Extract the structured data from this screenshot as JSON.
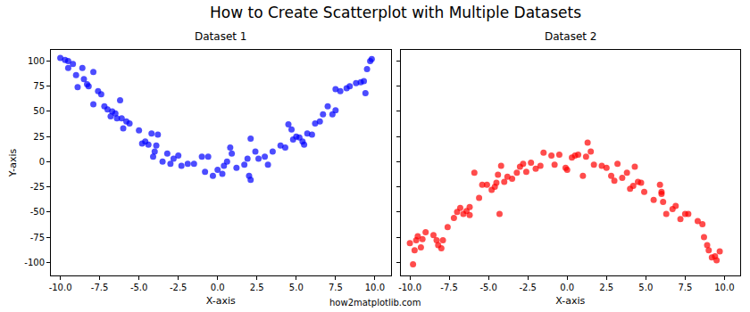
{
  "title": "How to Create Scatterplot with Multiple Datasets",
  "annotation": "how2matplotlib.com",
  "chart_data": [
    {
      "type": "scatter",
      "title": "Dataset 1",
      "x_label": "X-axis",
      "y_label": "Y-axis",
      "color": "blue",
      "marker": "circle",
      "grid": false,
      "xlim": [
        -10.6,
        11.0
      ],
      "ylim": [
        -113,
        111
      ],
      "xticks": [
        {
          "value": -10,
          "label": "-10.0"
        },
        -7.5,
        {
          "value": -5,
          "label": "-5.0"
        },
        -2.5,
        {
          "value": 0,
          "label": "0.0"
        },
        2.5,
        {
          "value": 5,
          "label": "5.0"
        },
        7.5,
        {
          "value": 10,
          "label": "10.0"
        }
      ],
      "yticks": [
        -100,
        -75,
        -50,
        -25,
        0,
        25,
        50,
        75,
        100
      ],
      "x": [
        -10,
        -9.7,
        -9.5,
        -9.5,
        -9.2,
        -9,
        -8.9,
        -8.6,
        -8.5,
        -8.3,
        -8.2,
        -7.9,
        -7.9,
        -7.6,
        -7.4,
        -7.2,
        -7,
        -6.8,
        -6.7,
        -6.5,
        -6.4,
        -6.2,
        -6.1,
        -6,
        -5.8,
        -5.6,
        -5,
        -4.8,
        -4.6,
        -4.4,
        -4.2,
        -4.1,
        -4,
        -3.9,
        -3.8,
        -3.5,
        -3.2,
        -3,
        -2.8,
        -2.5,
        -2.3,
        -1.9,
        -1.5,
        -1,
        -0.8,
        -0.6,
        -0.3,
        0,
        0.3,
        0.4,
        0.6,
        0.8,
        0.9,
        1.2,
        1.7,
        1.9,
        2,
        2.1,
        2.1,
        2.4,
        2.6,
        3,
        3.2,
        3.5,
        4,
        4.3,
        4.5,
        4.7,
        4.8,
        5,
        5.2,
        5.4,
        5.5,
        5.7,
        6,
        6.2,
        6.5,
        6.7,
        7,
        7.3,
        7.5,
        7.5,
        7.8,
        8.2,
        8.4,
        8.8,
        9.1,
        9.3,
        9.4,
        9.5,
        9.7,
        9.8
      ],
      "values": [
        103,
        101,
        100,
        93,
        97,
        86,
        74,
        93,
        82,
        77,
        75,
        89,
        57,
        70,
        67,
        55,
        52,
        45,
        50,
        48,
        43,
        61,
        43,
        33,
        40,
        38,
        31,
        18,
        20,
        17,
        28,
        5,
        10,
        16,
        27,
        0,
        8,
        -2,
        3,
        6,
        -4,
        -2,
        -2,
        5,
        -10,
        5,
        -14,
        -8,
        -12,
        -4,
        0,
        14,
        8,
        -6,
        -3,
        3,
        -14,
        -18,
        23,
        10,
        3,
        5,
        -3,
        10,
        16,
        14,
        37,
        32,
        22,
        25,
        24,
        20,
        17,
        28,
        27,
        38,
        40,
        47,
        55,
        47,
        51,
        72,
        70,
        73,
        75,
        78,
        79,
        80,
        68,
        92,
        100,
        102
      ]
    },
    {
      "type": "scatter",
      "title": "Dataset 2",
      "x_label": "X-axis",
      "color": "red",
      "marker": "circle",
      "grid": false,
      "tick_labels": "x",
      "xlim": [
        -10.6,
        11.0
      ],
      "ylim": [
        -113,
        111
      ],
      "xticks": [
        {
          "value": -10,
          "label": "-10.0"
        },
        -7.5,
        {
          "value": -5,
          "label": "-5.0"
        },
        -2.5,
        {
          "value": 0,
          "label": "0.0"
        },
        2.5,
        {
          "value": 5,
          "label": "5.0"
        },
        7.5,
        {
          "value": 10,
          "label": "10.0"
        }
      ],
      "yticks": [
        -100,
        -75,
        -50,
        -25,
        0,
        25,
        50,
        75,
        100
      ],
      "x": [
        -10,
        -9.8,
        -9.7,
        -9.6,
        -9.5,
        -9.3,
        -9.2,
        -9,
        -8.5,
        -8.3,
        -8.2,
        -8,
        -7.9,
        -7.6,
        -7.2,
        -7,
        -6.8,
        -6.6,
        -6.4,
        -6.2,
        -6.2,
        -5.9,
        -5.6,
        -5.4,
        -5.1,
        -4.8,
        -4.6,
        -4.5,
        -4.4,
        -4.3,
        -4.2,
        -4,
        -3.8,
        -3.5,
        -3.2,
        -3,
        -2.8,
        -2.6,
        -2.3,
        -2,
        -1.7,
        -1.5,
        -1,
        -0.8,
        -0.5,
        -0.1,
        0,
        0.3,
        0.5,
        0.7,
        1,
        1.2,
        1.3,
        1.5,
        1.7,
        2.2,
        2.5,
        2.8,
        3,
        3.2,
        3.5,
        3.8,
        4,
        4.2,
        4.3,
        4.5,
        4.7,
        4.9,
        5.5,
        5.9,
        6,
        6,
        6.1,
        6.3,
        6.7,
        6.9,
        7.2,
        7.5,
        7.7,
        8.3,
        8.6,
        8.7,
        8.9,
        9,
        9.2,
        9.4,
        9.5,
        9.7
      ],
      "values": [
        -81,
        -102,
        -88,
        -78,
        -74,
        -85,
        -77,
        -70,
        -73,
        -78,
        -83,
        -86,
        -78,
        -65,
        -56,
        -50,
        -46,
        -52,
        -49,
        -45,
        -53,
        -11,
        -36,
        -23,
        -23,
        -28,
        -25,
        -21,
        -13,
        -52,
        -4,
        -20,
        -15,
        -17,
        -11,
        -5,
        -2,
        -10,
        -1,
        -7,
        -4,
        9,
        6,
        -3,
        7,
        -6,
        -8,
        4,
        6,
        7,
        -14,
        5,
        19,
        10,
        -3,
        -4,
        -6,
        -14,
        -19,
        -2,
        -16,
        -11,
        -27,
        -24,
        -5,
        -20,
        -21,
        -30,
        -38,
        -23,
        -30,
        -32,
        -40,
        -52,
        -47,
        -44,
        -57,
        -52,
        -52,
        -59,
        -62,
        -75,
        -83,
        -88,
        -95,
        -94,
        -98,
        -89
      ]
    }
  ]
}
